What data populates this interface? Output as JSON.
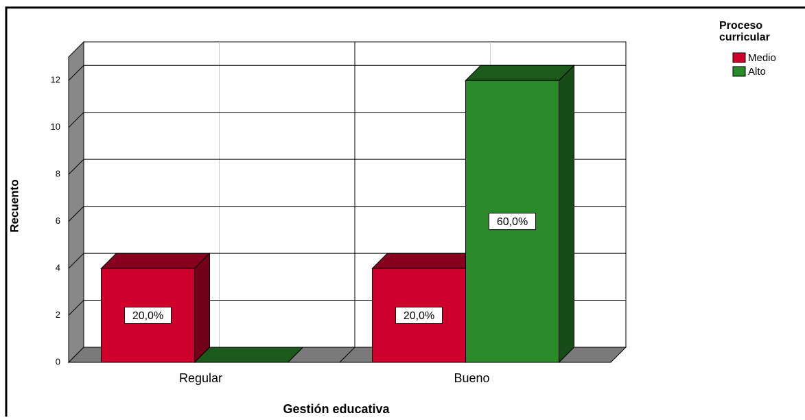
{
  "chart_data": {
    "type": "bar3d",
    "x_label": "Gestión educativa",
    "y_label": "Recuento",
    "legend_title": "Proceso curricular",
    "legend": "right",
    "categories": [
      "Regular",
      "Bueno"
    ],
    "series": [
      {
        "name": "Medio",
        "color": "#d0002c",
        "values": [
          4,
          4
        ],
        "percent_labels": [
          "20,0%",
          "20,0%"
        ]
      },
      {
        "name": "Alto",
        "color": "#2a8a2a",
        "values": [
          0,
          12
        ],
        "percent_labels": [
          null,
          "60,0%"
        ]
      }
    ],
    "ylim": [
      0,
      13
    ],
    "yticks": [
      0,
      2,
      4,
      6,
      8,
      10,
      12
    ],
    "grid": true
  }
}
